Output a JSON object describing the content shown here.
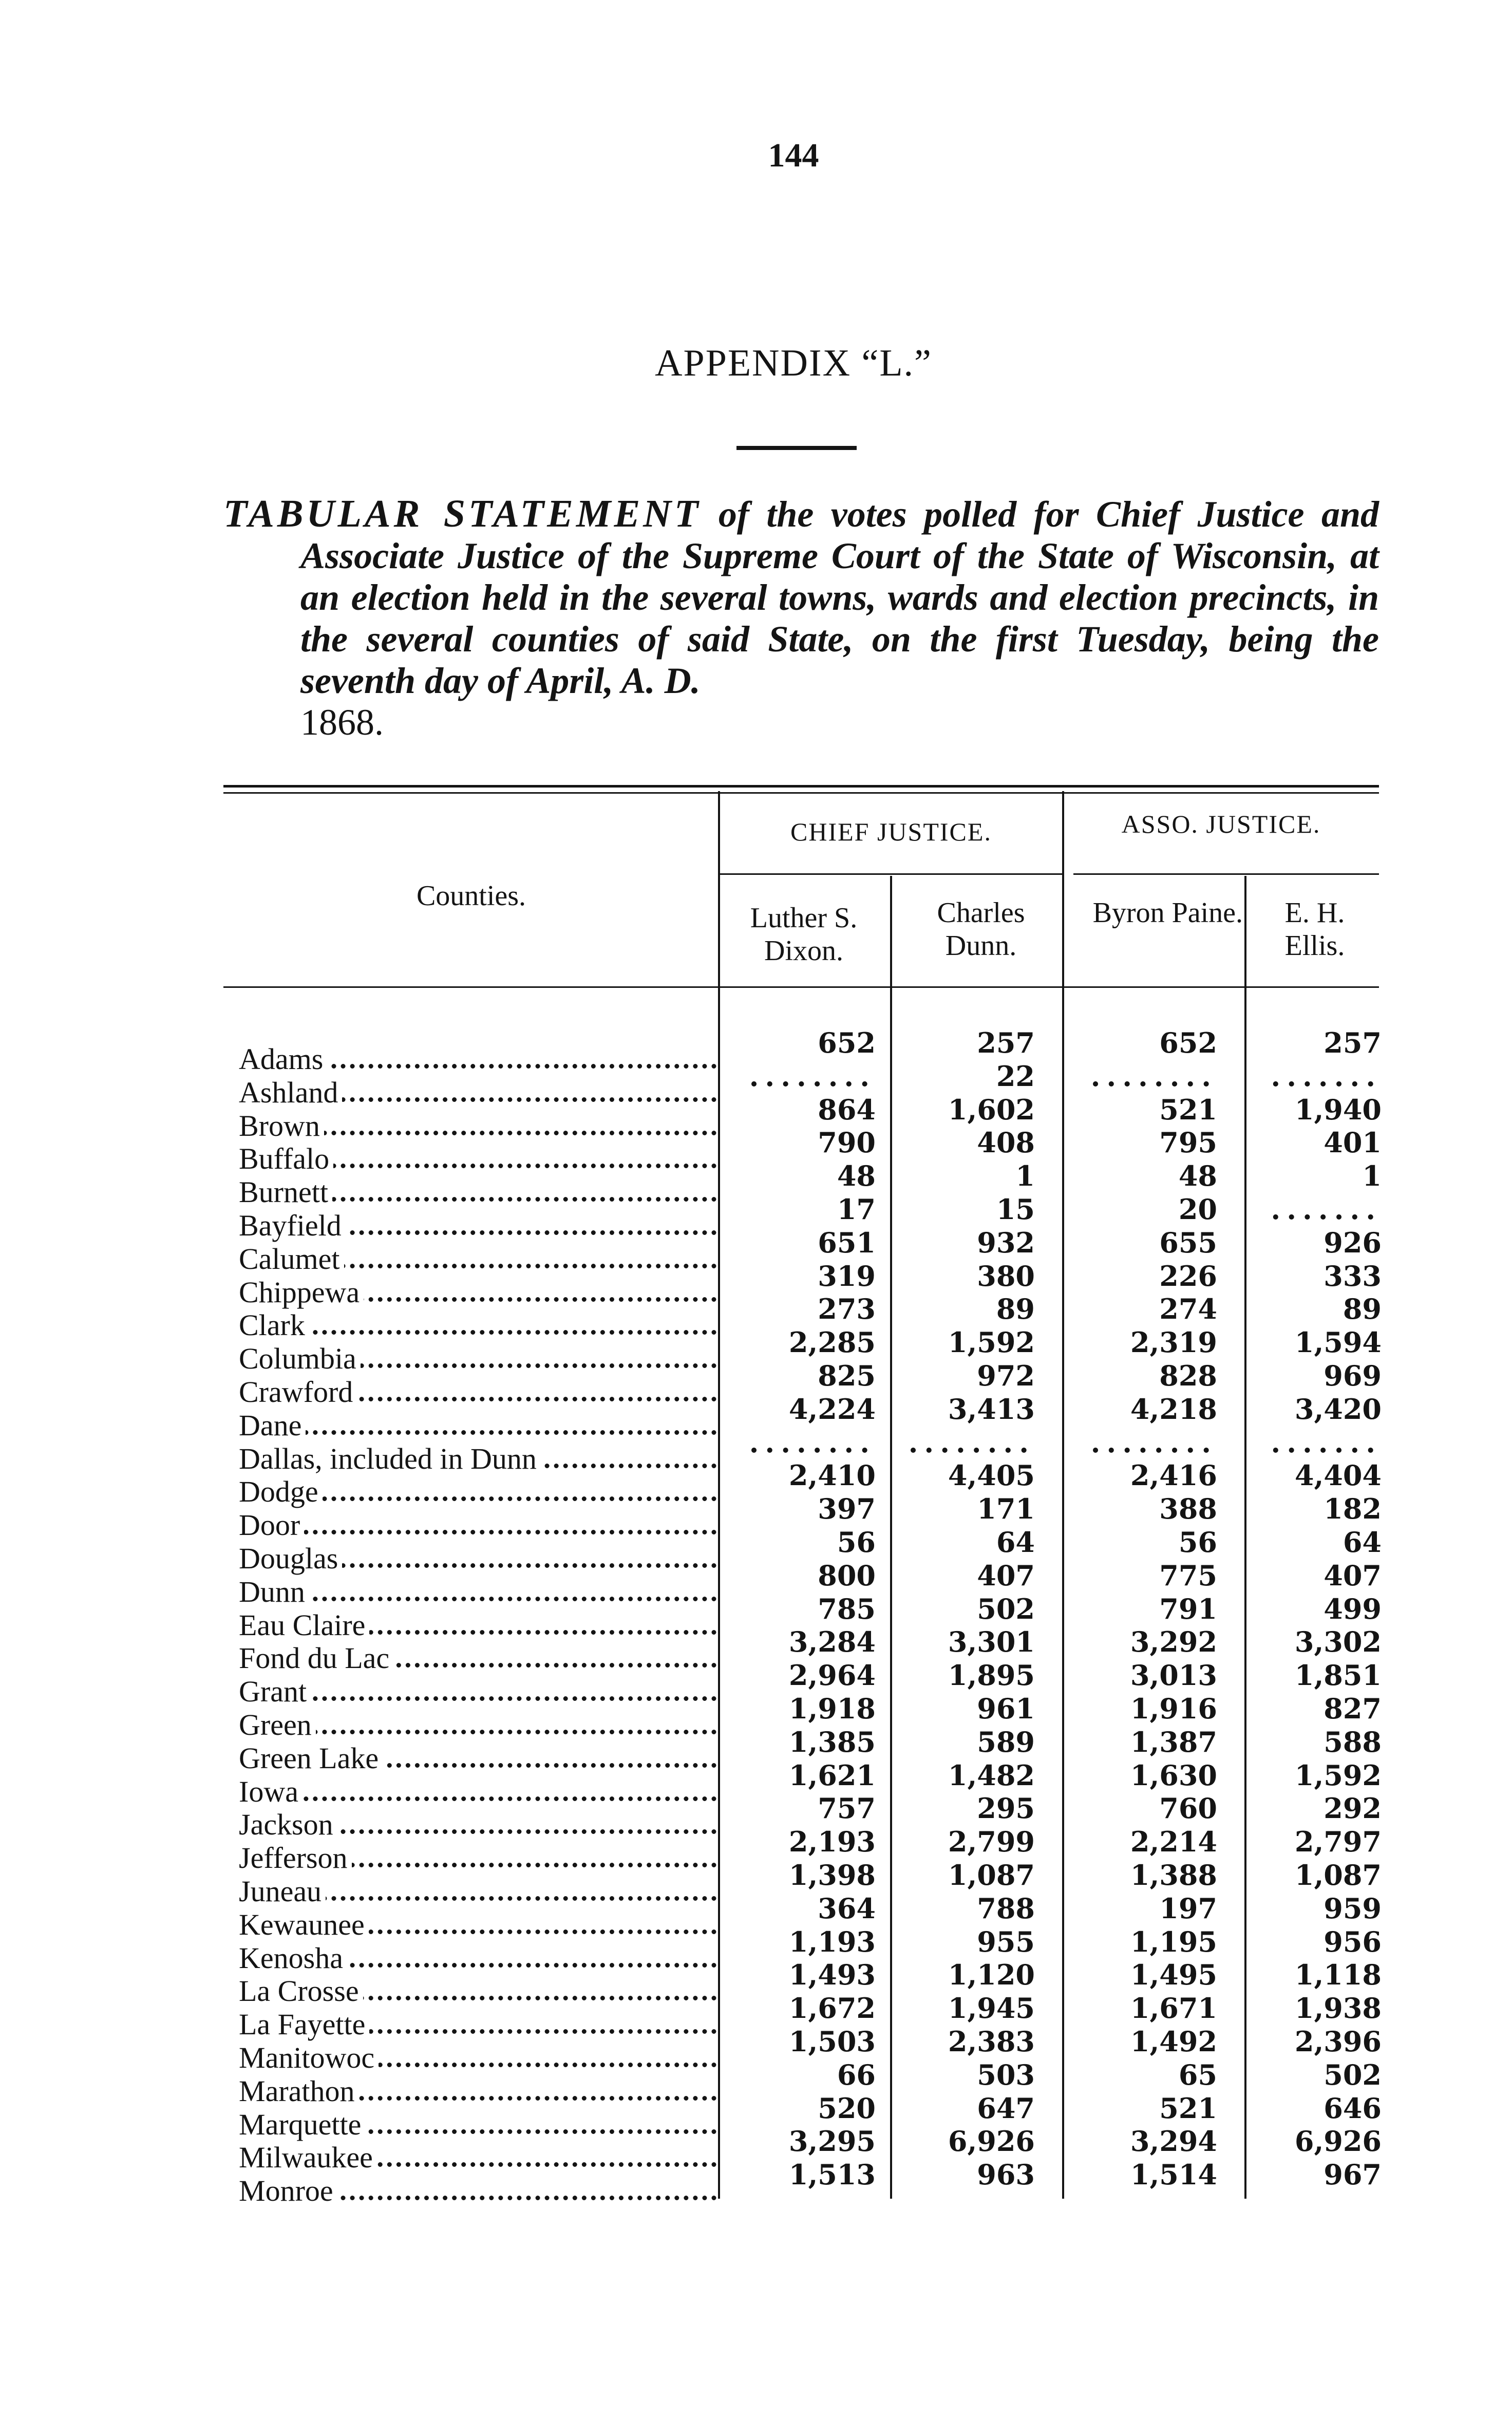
{
  "page_number": "144",
  "appendix": "APPENDIX “L.”",
  "title": {
    "lead": "TABULAR STATEMENT",
    "text": " of the votes polled for Chief Justice and Associate Justice of the Supreme Court of the State of Wisconsin, at an election held in the several towns, wards and election precincts, in the several counties of said State, on the first Tuesday, being the seventh day of April, A. D.",
    "year": "1868."
  },
  "table": {
    "counties_header": "Counties.",
    "group_chief": "CHIEF JUSTICE.",
    "group_asso": "ASSO. JUSTICE.",
    "columns": [
      "Luther S. Dixon.",
      "Charles Dunn.",
      "Byron Paine.",
      "E. H. Ellis."
    ],
    "rows": [
      {
        "county": "Adams",
        "v": [
          "652",
          "257",
          "652",
          "257"
        ]
      },
      {
        "county": "Ashland",
        "v": [
          "........",
          "22",
          "........",
          "......."
        ]
      },
      {
        "county": "Brown",
        "v": [
          "864",
          "1,602",
          "521",
          "1,940"
        ]
      },
      {
        "county": "Buffalo",
        "v": [
          "790",
          "408",
          "795",
          "401"
        ]
      },
      {
        "county": "Burnett",
        "v": [
          "48",
          "1",
          "48",
          "1"
        ]
      },
      {
        "county": "Bayfield",
        "v": [
          "17",
          "15",
          "20",
          "......."
        ]
      },
      {
        "county": "Calumet",
        "v": [
          "651",
          "932",
          "655",
          "926"
        ]
      },
      {
        "county": "Chippewa",
        "v": [
          "319",
          "380",
          "226",
          "333"
        ]
      },
      {
        "county": "Clark",
        "v": [
          "273",
          "89",
          "274",
          "89"
        ]
      },
      {
        "county": "Columbia",
        "v": [
          "2,285",
          "1,592",
          "2,319",
          "1,594"
        ]
      },
      {
        "county": "Crawford",
        "v": [
          "825",
          "972",
          "828",
          "969"
        ]
      },
      {
        "county": "Dane",
        "v": [
          "4,224",
          "3,413",
          "4,218",
          "3,420"
        ]
      },
      {
        "county": "Dallas, included in Dunn",
        "v": [
          "........",
          "........",
          "........",
          "......."
        ]
      },
      {
        "county": "Dodge",
        "v": [
          "2,410",
          "4,405",
          "2,416",
          "4,404"
        ]
      },
      {
        "county": "Door",
        "v": [
          "397",
          "171",
          "388",
          "182"
        ]
      },
      {
        "county": "Douglas",
        "v": [
          "56",
          "64",
          "56",
          "64"
        ]
      },
      {
        "county": "Dunn",
        "v": [
          "800",
          "407",
          "775",
          "407"
        ]
      },
      {
        "county": "Eau Claire",
        "v": [
          "785",
          "502",
          "791",
          "499"
        ]
      },
      {
        "county": "Fond du Lac",
        "v": [
          "3,284",
          "3,301",
          "3,292",
          "3,302"
        ]
      },
      {
        "county": "Grant",
        "v": [
          "2,964",
          "1,895",
          "3,013",
          "1,851"
        ]
      },
      {
        "county": "Green",
        "v": [
          "1,918",
          "961",
          "1,916",
          "827"
        ]
      },
      {
        "county": "Green Lake",
        "v": [
          "1,385",
          "589",
          "1,387",
          "588"
        ]
      },
      {
        "county": "Iowa",
        "v": [
          "1,621",
          "1,482",
          "1,630",
          "1,592"
        ]
      },
      {
        "county": "Jackson",
        "v": [
          "757",
          "295",
          "760",
          "292"
        ]
      },
      {
        "county": "Jefferson",
        "v": [
          "2,193",
          "2,799",
          "2,214",
          "2,797"
        ]
      },
      {
        "county": "Juneau",
        "v": [
          "1,398",
          "1,087",
          "1,388",
          "1,087"
        ]
      },
      {
        "county": "Kewaunee",
        "v": [
          "364",
          "788",
          "197",
          "959"
        ]
      },
      {
        "county": "Kenosha",
        "v": [
          "1,193",
          "955",
          "1,195",
          "956"
        ]
      },
      {
        "county": "La Crosse",
        "v": [
          "1,493",
          "1,120",
          "1,495",
          "1,118"
        ]
      },
      {
        "county": "La Fayette",
        "v": [
          "1,672",
          "1,945",
          "1,671",
          "1,938"
        ]
      },
      {
        "county": "Manitowoc",
        "v": [
          "1,503",
          "2,383",
          "1,492",
          "2,396"
        ]
      },
      {
        "county": "Marathon",
        "v": [
          "66",
          "503",
          "65",
          "502"
        ]
      },
      {
        "county": "Marquette",
        "v": [
          "520",
          "647",
          "521",
          "646"
        ]
      },
      {
        "county": "Milwaukee",
        "v": [
          "3,295",
          "6,926",
          "3,294",
          "6,926"
        ]
      },
      {
        "county": "Monroe",
        "v": [
          "1,513",
          "963",
          "1,514",
          "967"
        ]
      }
    ]
  }
}
